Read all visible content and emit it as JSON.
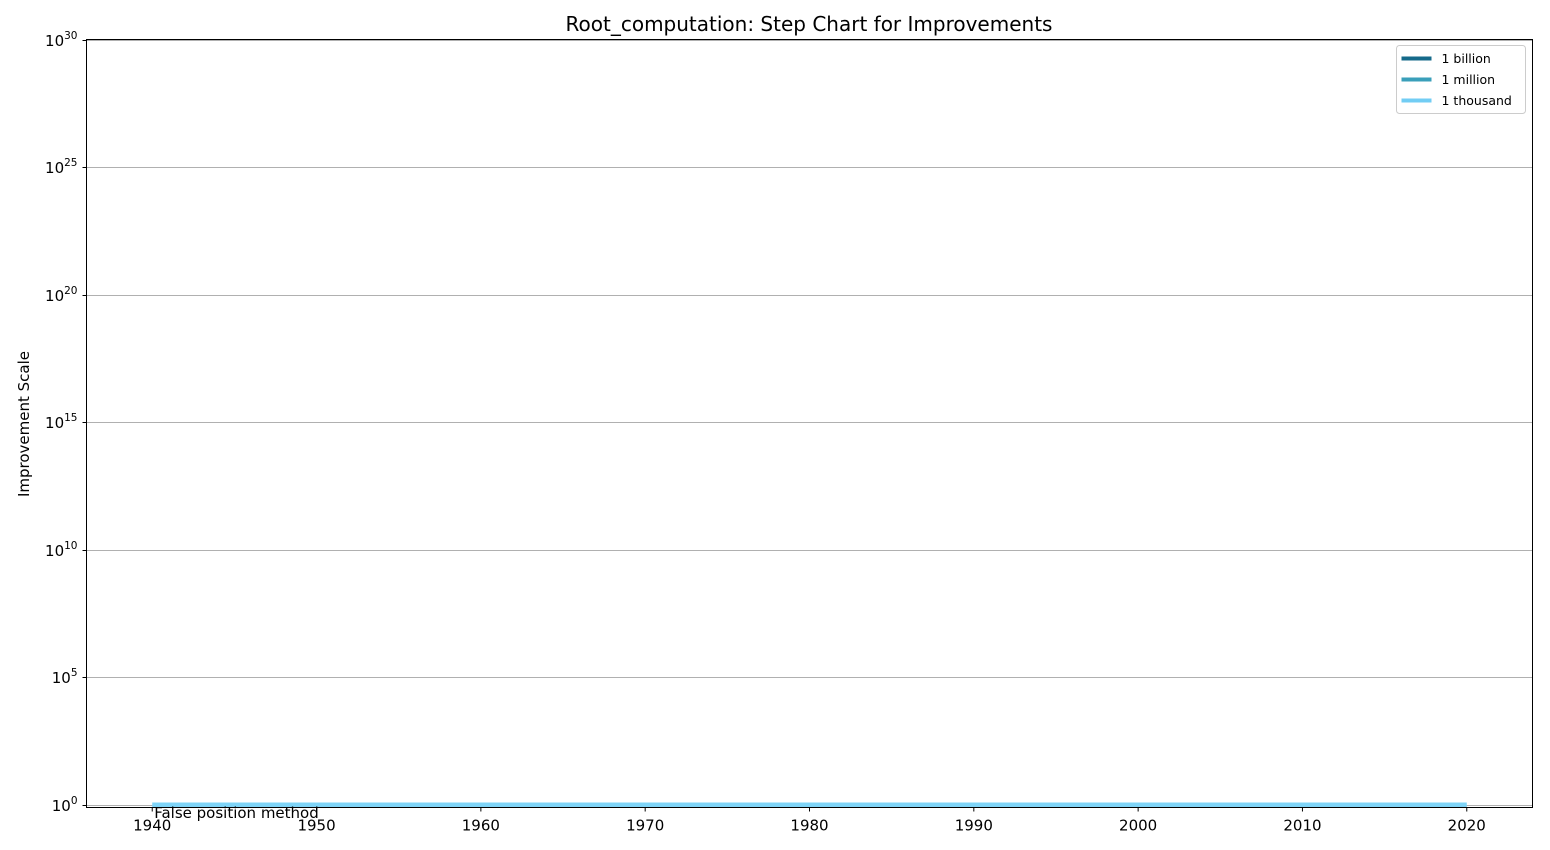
{
  "chart_data": {
    "type": "line",
    "title": "Root_computation: Step Chart for Improvements",
    "xlabel": "",
    "ylabel": "Improvement Scale",
    "yscale": "log",
    "xlim": [
      1936,
      2024
    ],
    "ylim": [
      0.8,
      1e+30
    ],
    "xticks": [
      1940,
      1950,
      1960,
      1970,
      1980,
      1990,
      2000,
      2010,
      2020
    ],
    "yticks": [
      {
        "value": 1,
        "base": "10",
        "exp": "0"
      },
      {
        "value": 100000,
        "base": "10",
        "exp": "5"
      },
      {
        "value": 10000000000.0,
        "base": "10",
        "exp": "10"
      },
      {
        "value": 1000000000000000.0,
        "base": "10",
        "exp": "15"
      },
      {
        "value": 1e+20,
        "base": "10",
        "exp": "20"
      },
      {
        "value": 1e+25,
        "base": "10",
        "exp": "25"
      },
      {
        "value": 1e+30,
        "base": "10",
        "exp": "30"
      }
    ],
    "grid": "horizontal",
    "legend_position": "top-right",
    "series": [
      {
        "name": "1 billion",
        "color": "#156a8a",
        "x": [
          1940,
          2020
        ],
        "y": [
          1,
          1
        ]
      },
      {
        "name": "1 million",
        "color": "#3a9fba",
        "x": [
          1940,
          2020
        ],
        "y": [
          1,
          1
        ]
      },
      {
        "name": "1 thousand",
        "color": "#72cdf4",
        "x": [
          1940,
          2020
        ],
        "y": [
          1,
          1
        ]
      }
    ],
    "step_line": {
      "color": "#7fd4f7",
      "x": [
        1940,
        2020
      ],
      "y": [
        1,
        1
      ]
    },
    "annotations": [
      {
        "text": "False position method",
        "x": 1940,
        "y": 1
      }
    ]
  }
}
